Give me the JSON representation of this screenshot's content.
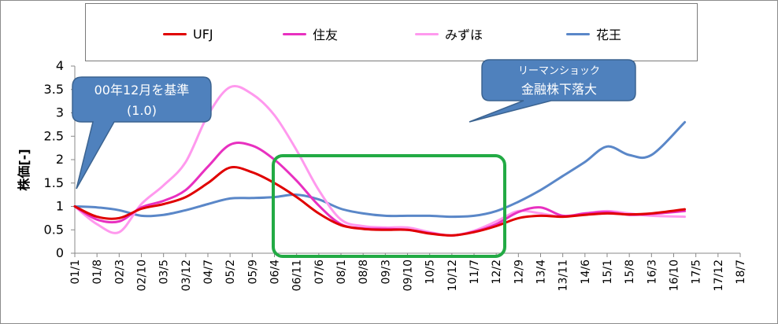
{
  "chart_data": {
    "type": "line",
    "ylabel": "株価[-]",
    "ylim": [
      0,
      4
    ],
    "yticks": [
      "0",
      "0.5",
      "1",
      "1.5",
      "2",
      "2.5",
      "3",
      "3.5",
      "4"
    ],
    "xticks": [
      "01/1",
      "01/8",
      "02/3",
      "02/10",
      "03/5",
      "03/12",
      "04/7",
      "05/2",
      "05/9",
      "06/4",
      "06/11",
      "07/6",
      "08/1",
      "08/8",
      "09/3",
      "09/10",
      "10/5",
      "10/12",
      "11/7",
      "12/2",
      "12/9",
      "13/4",
      "13/11",
      "14/6",
      "15/1",
      "15/8",
      "16/3",
      "16/10",
      "17/5",
      "17/12",
      "18/7"
    ],
    "legend_position": "top",
    "grid": false,
    "series": [
      {
        "name": "UFJ",
        "color": "#e00000",
        "x": [
          0,
          1,
          2,
          3,
          4,
          5,
          6,
          7,
          8,
          9,
          10,
          11,
          12,
          13,
          14,
          15,
          16,
          17,
          18,
          19,
          20,
          21,
          22,
          23,
          24,
          25,
          26,
          27.5
        ],
        "values": [
          1.0,
          0.78,
          0.75,
          0.95,
          1.05,
          1.2,
          1.5,
          1.83,
          1.73,
          1.5,
          1.2,
          0.85,
          0.6,
          0.52,
          0.5,
          0.5,
          0.42,
          0.38,
          0.45,
          0.58,
          0.75,
          0.8,
          0.78,
          0.82,
          0.85,
          0.83,
          0.85,
          0.94
        ]
      },
      {
        "name": "住友",
        "color": "#e830c0",
        "x": [
          0,
          1,
          2,
          3,
          4,
          5,
          6,
          7,
          8,
          9,
          10,
          11,
          12,
          13,
          14,
          15,
          16,
          17,
          18,
          19,
          20,
          21,
          22,
          23,
          24,
          25,
          26,
          27.5
        ],
        "values": [
          1.0,
          0.72,
          0.68,
          0.98,
          1.12,
          1.35,
          1.85,
          2.32,
          2.3,
          2.0,
          1.55,
          1.02,
          0.62,
          0.53,
          0.52,
          0.5,
          0.43,
          0.38,
          0.46,
          0.62,
          0.88,
          0.98,
          0.8,
          0.85,
          0.88,
          0.82,
          0.84,
          0.9
        ]
      },
      {
        "name": "みずほ",
        "color": "#ff99ee",
        "x": [
          0,
          1,
          2,
          3,
          4,
          5,
          6,
          7,
          8,
          9,
          10,
          11,
          12,
          13,
          14,
          15,
          16,
          17,
          18,
          19,
          20,
          21,
          22,
          23,
          24,
          25,
          26,
          27.5
        ],
        "values": [
          1.0,
          0.62,
          0.45,
          1.05,
          1.45,
          1.95,
          2.95,
          3.55,
          3.4,
          2.95,
          2.2,
          1.35,
          0.72,
          0.58,
          0.55,
          0.55,
          0.45,
          0.38,
          0.48,
          0.68,
          0.9,
          0.85,
          0.78,
          0.85,
          0.9,
          0.85,
          0.8,
          0.78
        ]
      },
      {
        "name": "花王",
        "color": "#5a87c8",
        "x": [
          0,
          1,
          2,
          3,
          4,
          5,
          6,
          7,
          8,
          9,
          10,
          11,
          12,
          13,
          14,
          15,
          16,
          17,
          18,
          19,
          20,
          21,
          22,
          23,
          24,
          25,
          26,
          27.5
        ],
        "values": [
          1.0,
          0.98,
          0.92,
          0.8,
          0.82,
          0.92,
          1.05,
          1.17,
          1.18,
          1.2,
          1.25,
          1.15,
          0.95,
          0.85,
          0.8,
          0.8,
          0.8,
          0.78,
          0.8,
          0.9,
          1.1,
          1.35,
          1.65,
          1.95,
          2.28,
          2.1,
          2.1,
          2.8
        ]
      }
    ],
    "annotations": [
      {
        "text_lines": [
          "00年12月を基準",
          "(1.0)"
        ],
        "fill": "#4f81bd"
      },
      {
        "text_lines": [
          "リーマンショック",
          "金融株下落大"
        ],
        "fill": "#4f81bd"
      }
    ],
    "highlight_box_color": "#22aa44"
  }
}
